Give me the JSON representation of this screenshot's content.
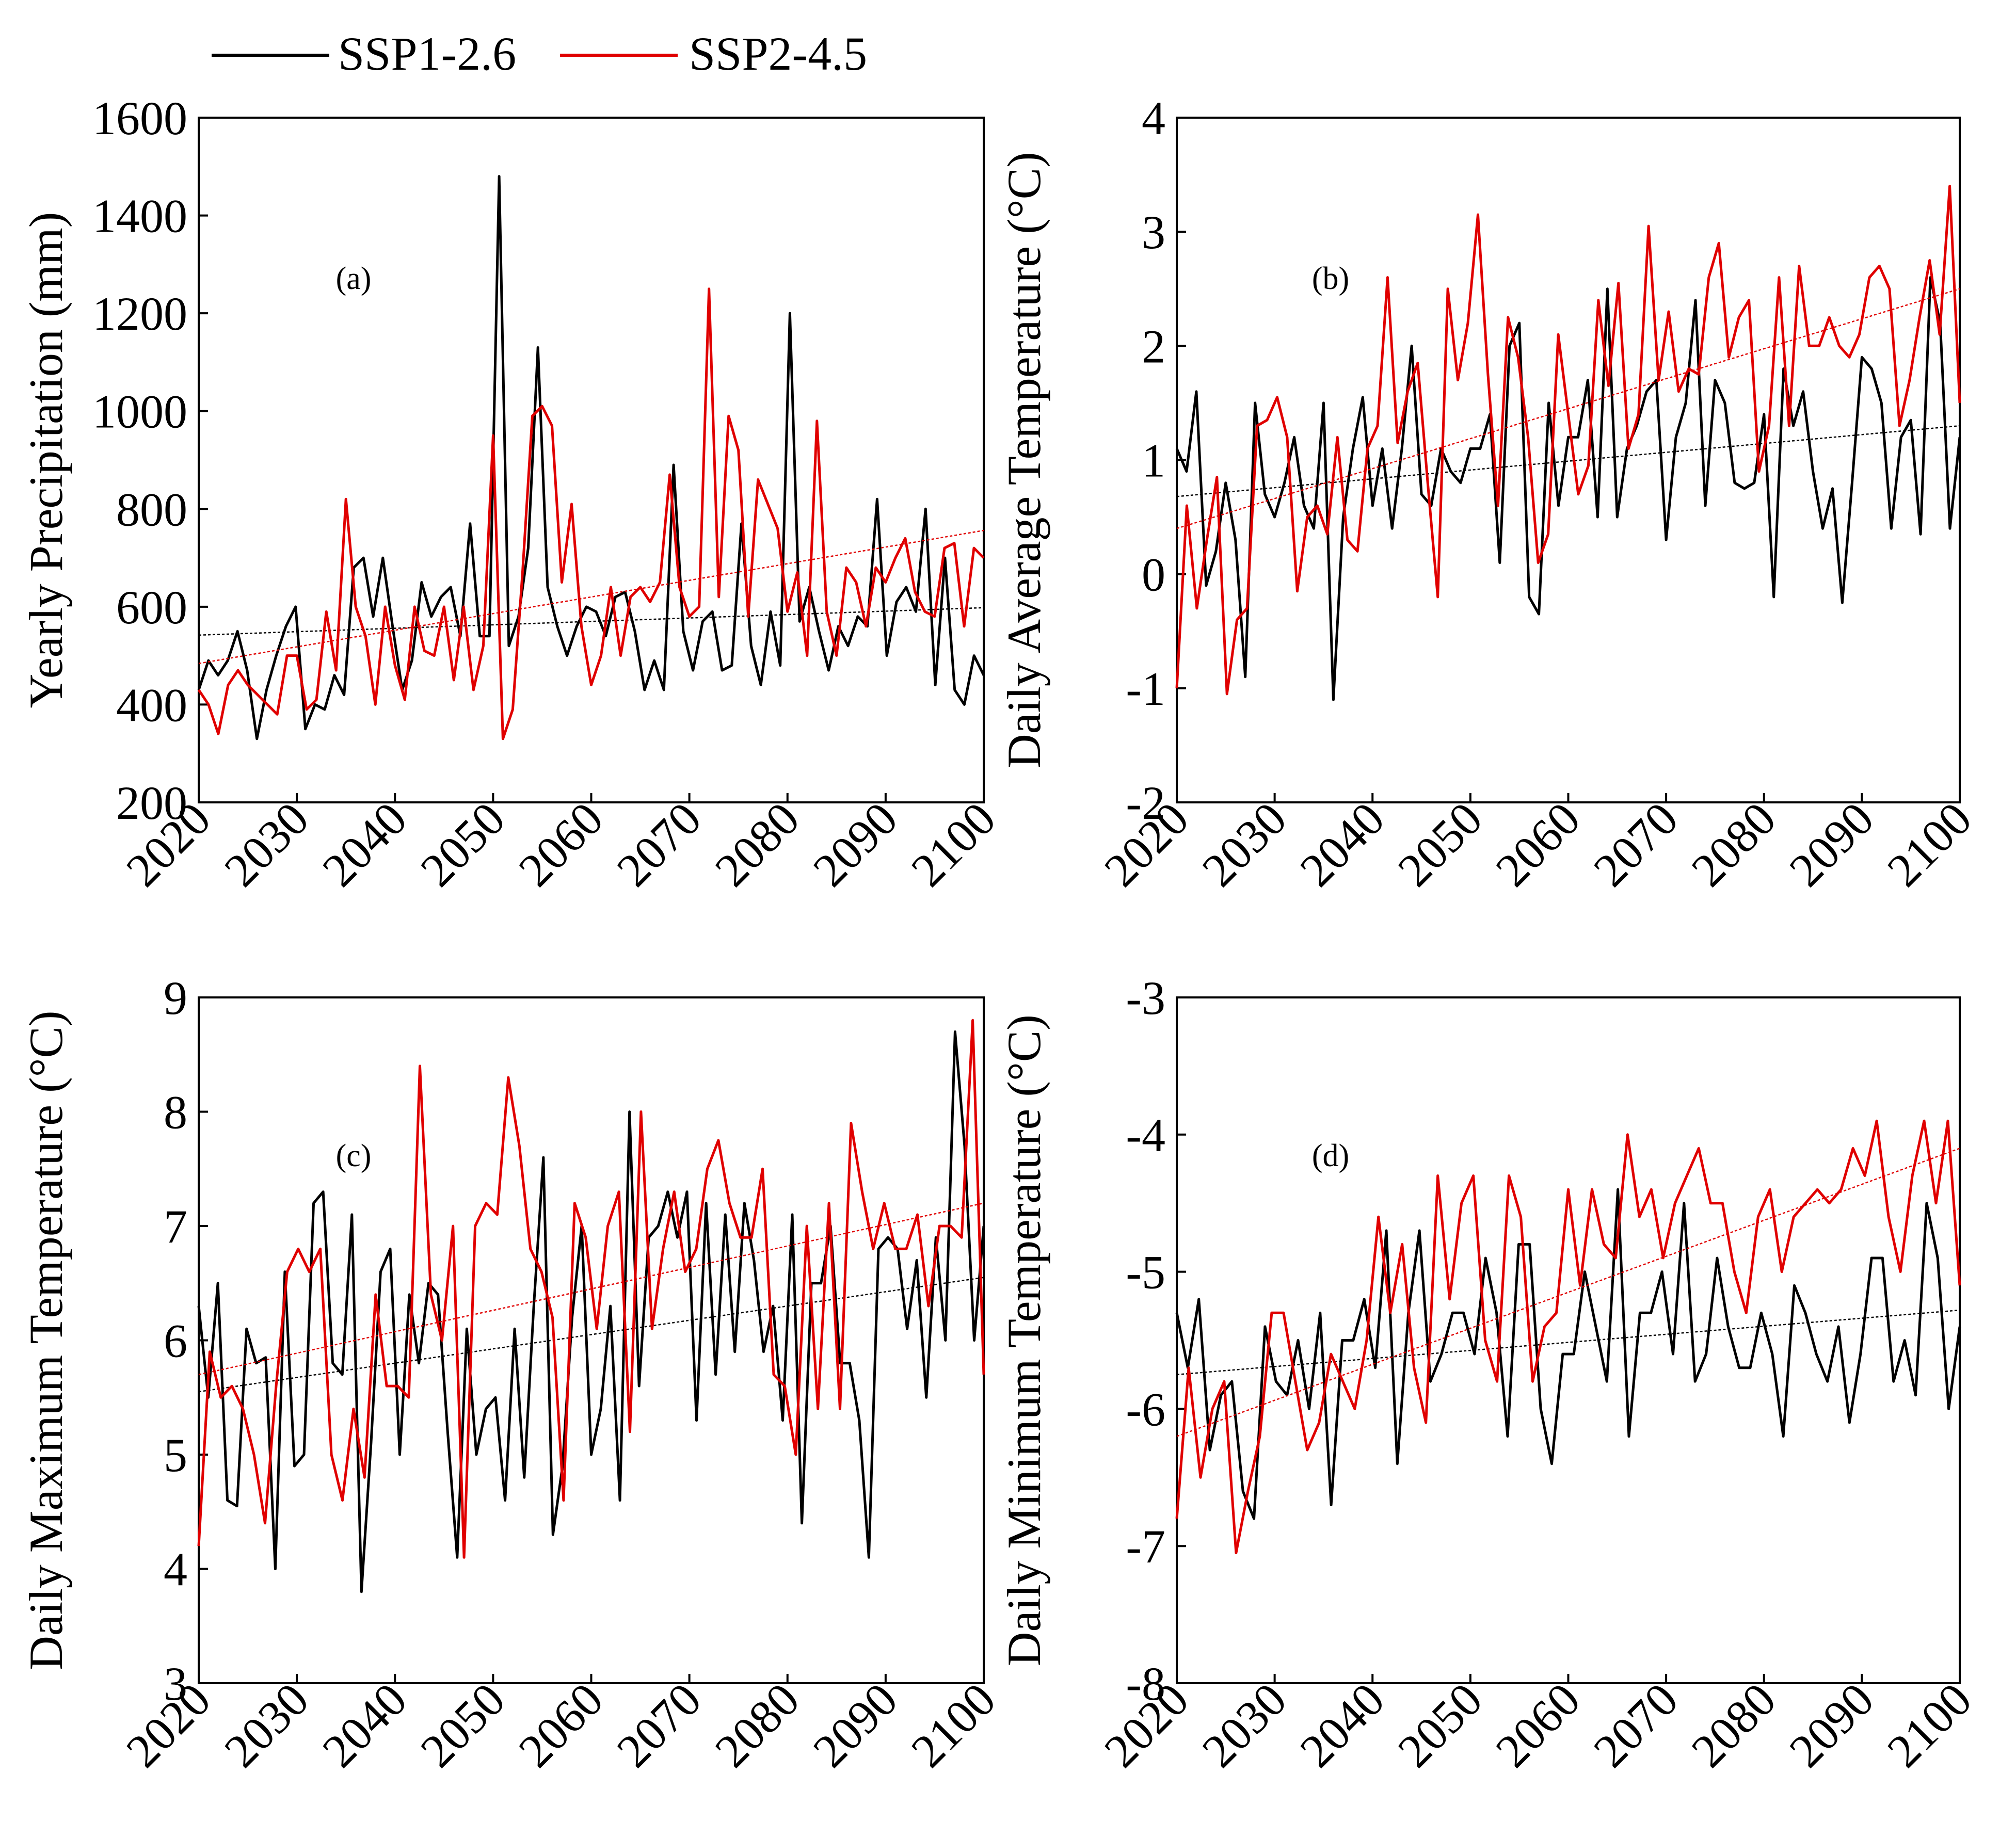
{
  "legend": [
    {
      "name": "SSP1-2.6",
      "color": "#000000"
    },
    {
      "name": "SSP2-4.5",
      "color": "#e00000"
    }
  ],
  "chart_data": [
    {
      "type": "line",
      "panel_label": "(a)",
      "ylabel": "Yearly Precipitation (mm)",
      "xlabel": "",
      "xlim": [
        2020,
        2100
      ],
      "ylim": [
        200,
        1600
      ],
      "xticks": [
        "2020",
        "2030",
        "2040",
        "2050",
        "2060",
        "2070",
        "2080",
        "2090",
        "2100"
      ],
      "yticks": [
        "200",
        "400",
        "600",
        "800",
        "1000",
        "1200",
        "1400",
        "1600"
      ],
      "x_start": 2020,
      "series": [
        {
          "name": "SSP1-2.6",
          "color": "#000000",
          "values": [
            430,
            490,
            460,
            490,
            550,
            470,
            330,
            430,
            500,
            560,
            600,
            350,
            400,
            390,
            460,
            420,
            680,
            700,
            580,
            700,
            560,
            430,
            490,
            650,
            580,
            620,
            640,
            540,
            770,
            540,
            540,
            1480,
            520,
            580,
            720,
            1130,
            640,
            560,
            500,
            560,
            600,
            590,
            540,
            620,
            630,
            550,
            430,
            490,
            430,
            890,
            550,
            470,
            570,
            590,
            470,
            480,
            770,
            520,
            440,
            590,
            480,
            1200,
            570,
            640,
            550,
            470,
            560,
            520,
            580,
            560,
            820,
            500,
            610,
            640,
            590,
            800,
            440,
            700,
            430,
            400,
            500,
            460
          ],
          "trend": [
            542,
            598
          ]
        },
        {
          "name": "SSP2-4.5",
          "color": "#e00000",
          "values": [
            430,
            400,
            340,
            440,
            470,
            440,
            420,
            400,
            380,
            500,
            500,
            390,
            410,
            590,
            470,
            820,
            600,
            540,
            400,
            600,
            480,
            410,
            600,
            510,
            500,
            600,
            450,
            600,
            430,
            520,
            950,
            330,
            390,
            670,
            990,
            1010,
            970,
            650,
            810,
            560,
            440,
            500,
            640,
            500,
            620,
            640,
            610,
            650,
            870,
            640,
            580,
            600,
            1250,
            620,
            990,
            920,
            580,
            860,
            810,
            760,
            590,
            670,
            500,
            980,
            590,
            500,
            680,
            650,
            560,
            680,
            650,
            700,
            740,
            630,
            590,
            580,
            720,
            730,
            560,
            720,
            700
          ],
          "trend": [
            484,
            756
          ]
        }
      ]
    },
    {
      "type": "line",
      "panel_label": "(b)",
      "ylabel": "Daily Average Temperature (°C)",
      "xlabel": "",
      "xlim": [
        2020,
        2100
      ],
      "ylim": [
        -2,
        4
      ],
      "xticks": [
        "2020",
        "2030",
        "2040",
        "2050",
        "2060",
        "2070",
        "2080",
        "2090",
        "2100"
      ],
      "yticks": [
        "-2",
        "-1",
        "0",
        "1",
        "2",
        "3",
        "4"
      ],
      "x_start": 2020,
      "series": [
        {
          "name": "SSP1-2.6",
          "color": "#000000",
          "values": [
            1.1,
            0.9,
            1.6,
            -0.1,
            0.2,
            0.8,
            0.3,
            -0.9,
            1.5,
            0.7,
            0.5,
            0.8,
            1.2,
            0.6,
            0.4,
            1.5,
            -1.1,
            0.5,
            1.1,
            1.55,
            0.6,
            1.1,
            0.4,
            1.1,
            2.0,
            0.7,
            0.6,
            1.1,
            0.9,
            0.8,
            1.1,
            1.1,
            1.4,
            0.1,
            2.0,
            2.2,
            -0.2,
            -0.35,
            1.5,
            0.6,
            1.2,
            1.2,
            1.7,
            0.5,
            2.5,
            0.5,
            1.1,
            1.3,
            1.6,
            1.7,
            0.3,
            1.2,
            1.5,
            2.4,
            0.6,
            1.7,
            1.5,
            0.8,
            0.75,
            0.8,
            1.4,
            -0.2,
            1.8,
            1.3,
            1.6,
            0.9,
            0.4,
            0.75,
            -0.25,
            0.8,
            1.9,
            1.8,
            1.5,
            0.4,
            1.2,
            1.35,
            0.35,
            2.6,
            2.2,
            0.4,
            1.2
          ],
          "trend": [
            0.68,
            1.3
          ]
        },
        {
          "name": "SSP2-4.5",
          "color": "#e00000",
          "values": [
            -1.0,
            0.6,
            -0.3,
            0.3,
            0.85,
            -1.05,
            -0.4,
            -0.3,
            1.3,
            1.35,
            1.55,
            1.2,
            -0.15,
            0.5,
            0.6,
            0.35,
            1.2,
            0.3,
            0.2,
            1.1,
            1.3,
            2.6,
            1.15,
            1.6,
            1.85,
            0.8,
            -0.2,
            2.5,
            1.7,
            2.2,
            3.15,
            1.75,
            0.6,
            2.25,
            1.9,
            1.2,
            0.1,
            0.35,
            2.1,
            1.4,
            0.7,
            0.95,
            2.4,
            1.65,
            2.55,
            1.1,
            1.4,
            3.05,
            1.7,
            2.3,
            1.6,
            1.8,
            1.75,
            2.6,
            2.9,
            1.9,
            2.25,
            2.4,
            0.9,
            1.3,
            2.6,
            1.3,
            2.7,
            2.0,
            2.0,
            2.25,
            2.0,
            1.9,
            2.1,
            2.6,
            2.7,
            2.5,
            1.3,
            1.7,
            2.25,
            2.75,
            2.1,
            3.4,
            1.5
          ],
          "trend": [
            0.4,
            2.5
          ]
        }
      ]
    },
    {
      "type": "line",
      "panel_label": "(c)",
      "ylabel": "Daily Maximum Temperature (°C)",
      "xlabel": "",
      "xlim": [
        2020,
        2100
      ],
      "ylim": [
        3,
        9
      ],
      "xticks": [
        "2020",
        "2030",
        "2040",
        "2050",
        "2060",
        "2070",
        "2080",
        "2090",
        "2100"
      ],
      "yticks": [
        "3",
        "4",
        "5",
        "6",
        "7",
        "8",
        "9"
      ],
      "x_start": 2020,
      "series": [
        {
          "name": "SSP1-2.6",
          "color": "#000000",
          "values": [
            6.3,
            5.5,
            6.5,
            4.6,
            4.55,
            6.1,
            5.8,
            5.85,
            4.0,
            6.6,
            4.9,
            5.0,
            7.2,
            7.3,
            5.8,
            5.7,
            7.1,
            3.8,
            5.1,
            6.6,
            6.8,
            5.0,
            6.4,
            5.8,
            6.5,
            6.4,
            5.2,
            4.1,
            6.1,
            5.0,
            5.4,
            5.5,
            4.6,
            6.1,
            4.8,
            6.3,
            7.6,
            4.3,
            4.9,
            6.2,
            7.0,
            5.0,
            5.4,
            6.3,
            4.6,
            8.0,
            5.6,
            6.9,
            7.0,
            7.3,
            6.9,
            7.3,
            5.3,
            7.2,
            5.7,
            7.1,
            5.9,
            7.2,
            6.7,
            5.9,
            6.3,
            5.3,
            7.1,
            4.4,
            6.5,
            6.5,
            7.0,
            5.8,
            5.8,
            5.3,
            4.1,
            6.8,
            6.9,
            6.8,
            6.1,
            6.7,
            5.5,
            6.9,
            6.0,
            8.7,
            7.7,
            6.0,
            7.0
          ],
          "trend": [
            5.55,
            6.55
          ]
        },
        {
          "name": "SSP2-4.5",
          "color": "#e00000",
          "values": [
            4.2,
            5.9,
            5.5,
            5.6,
            5.4,
            5.0,
            4.4,
            5.6,
            6.6,
            6.8,
            6.6,
            6.8,
            5.0,
            4.6,
            5.4,
            4.8,
            6.4,
            5.6,
            5.6,
            5.5,
            8.4,
            6.4,
            6.0,
            7.0,
            4.1,
            7.0,
            7.2,
            7.1,
            8.3,
            7.7,
            6.8,
            6.6,
            6.2,
            4.6,
            7.2,
            6.9,
            6.1,
            7.0,
            7.3,
            5.2,
            8.0,
            6.1,
            6.8,
            7.3,
            6.6,
            6.8,
            7.5,
            7.75,
            7.2,
            6.9,
            6.9,
            7.5,
            5.7,
            5.6,
            5.0,
            7.0,
            5.4,
            7.2,
            5.4,
            7.9,
            7.3,
            6.8,
            7.2,
            6.8,
            6.8,
            7.1,
            6.3,
            7.0,
            7.0,
            6.9,
            8.8,
            5.7
          ],
          "trend": [
            5.7,
            7.2
          ]
        }
      ]
    },
    {
      "type": "line",
      "panel_label": "(d)",
      "ylabel": "Daily Minimum Temperature (°C)",
      "xlabel": "",
      "xlim": [
        2020,
        2100
      ],
      "ylim": [
        -8,
        -3
      ],
      "xticks": [
        "2020",
        "2030",
        "2040",
        "2050",
        "2060",
        "2070",
        "2080",
        "2090",
        "2100"
      ],
      "yticks": [
        "-8",
        "-7",
        "-6",
        "-5",
        "-4",
        "-3"
      ],
      "x_start": 2020,
      "series": [
        {
          "name": "SSP1-2.6",
          "color": "#000000",
          "values": [
            -5.3,
            -5.7,
            -5.2,
            -6.3,
            -5.9,
            -5.8,
            -6.6,
            -6.8,
            -5.4,
            -5.8,
            -5.9,
            -5.5,
            -6.0,
            -5.3,
            -6.7,
            -5.5,
            -5.5,
            -5.2,
            -5.7,
            -4.7,
            -6.4,
            -5.3,
            -4.7,
            -5.8,
            -5.6,
            -5.3,
            -5.3,
            -5.6,
            -4.9,
            -5.3,
            -6.2,
            -4.8,
            -4.8,
            -6.0,
            -6.4,
            -5.6,
            -5.6,
            -5.0,
            -5.4,
            -5.8,
            -4.4,
            -6.2,
            -5.3,
            -5.3,
            -5.0,
            -5.6,
            -4.5,
            -5.8,
            -5.6,
            -4.9,
            -5.4,
            -5.7,
            -5.7,
            -5.3,
            -5.6,
            -6.2,
            -5.1,
            -5.3,
            -5.6,
            -5.8,
            -5.4,
            -6.1,
            -5.6,
            -4.9,
            -4.9,
            -5.8,
            -5.5,
            -5.9,
            -4.5,
            -4.9,
            -6.0,
            -5.4
          ],
          "trend": [
            -5.75,
            -5.28
          ]
        },
        {
          "name": "SSP2-4.5",
          "color": "#e00000",
          "values": [
            -6.8,
            -5.7,
            -6.5,
            -6.0,
            -5.8,
            -7.05,
            -6.6,
            -6.2,
            -5.3,
            -5.3,
            -5.8,
            -6.3,
            -6.1,
            -5.6,
            -5.8,
            -6.0,
            -5.5,
            -4.6,
            -5.3,
            -4.8,
            -5.7,
            -6.1,
            -4.3,
            -5.2,
            -4.5,
            -4.3,
            -5.5,
            -5.8,
            -4.3,
            -4.6,
            -5.8,
            -5.4,
            -5.3,
            -4.4,
            -5.1,
            -4.4,
            -4.8,
            -4.9,
            -4.0,
            -4.6,
            -4.4,
            -4.9,
            -4.5,
            -4.3,
            -4.1,
            -4.5,
            -4.5,
            -5.0,
            -5.3,
            -4.6,
            -4.4,
            -5.0,
            -4.6,
            -4.5,
            -4.4,
            -4.5,
            -4.4,
            -4.1,
            -4.3,
            -3.9,
            -4.6,
            -5.0,
            -4.3,
            -3.9,
            -4.5,
            -3.9,
            -5.1
          ],
          "trend": [
            -6.2,
            -4.1
          ]
        }
      ]
    }
  ]
}
